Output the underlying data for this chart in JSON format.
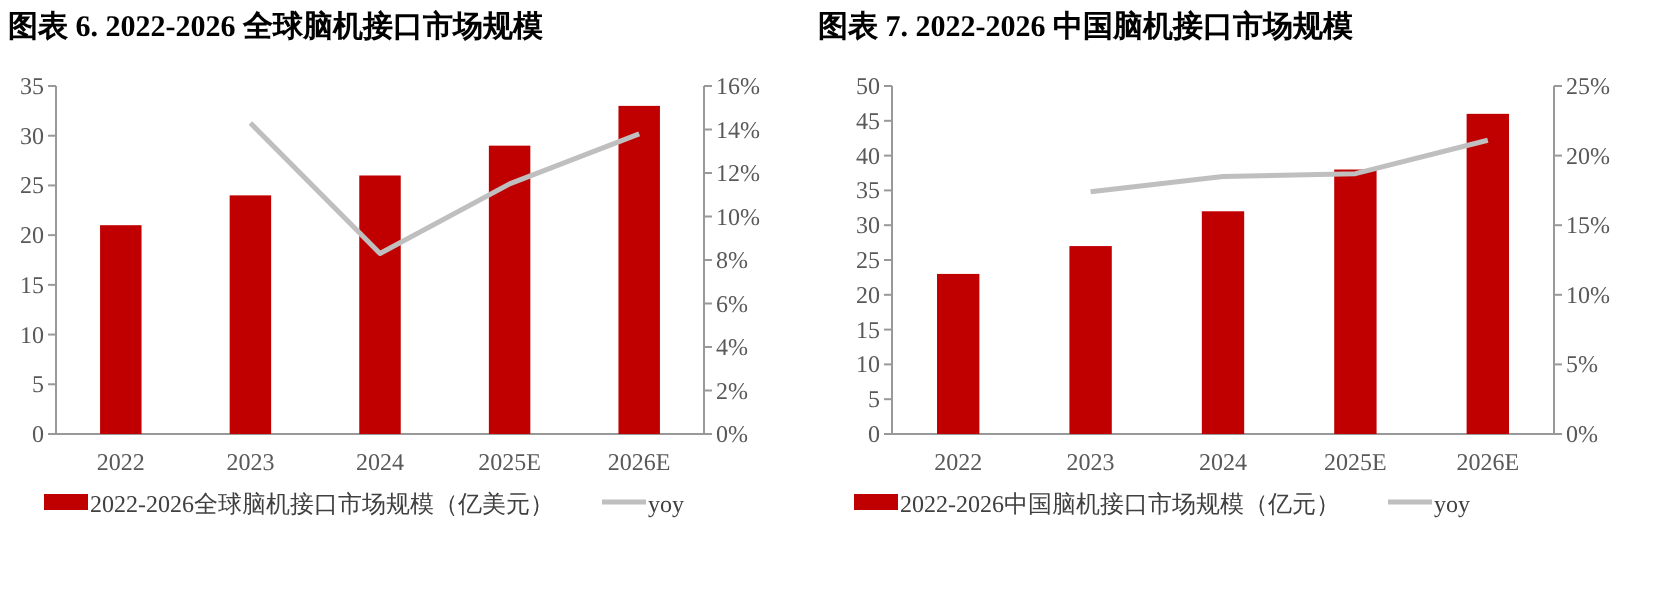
{
  "chart_data": [
    {
      "type": "bar",
      "title": "图表 6. 2022-2026 全球脑机接口市场规模",
      "categories": [
        "2022",
        "2023",
        "2024",
        "2025E",
        "2026E"
      ],
      "series": [
        {
          "name": "2022-2026全球脑机接口市场规模（亿美元）",
          "color": "#c00000",
          "values": [
            21,
            24,
            26,
            29,
            33
          ]
        },
        {
          "name": "yoy",
          "type": "line",
          "axis": "y2",
          "color": "#bfbfbf",
          "values": [
            null,
            14.3,
            8.3,
            11.5,
            13.8
          ]
        }
      ],
      "ylim": [
        0,
        35
      ],
      "yticks": [
        0,
        5,
        10,
        15,
        20,
        25,
        30,
        35
      ],
      "y2lim": [
        0,
        16
      ],
      "y2ticks": [
        {
          "value": 0,
          "label": "0%"
        },
        {
          "value": 2,
          "label": "2%"
        },
        {
          "value": 4,
          "label": "4%"
        },
        {
          "value": 6,
          "label": "6%"
        },
        {
          "value": 8,
          "label": "8%"
        },
        {
          "value": 10,
          "label": "10%"
        },
        {
          "value": 12,
          "label": "12%"
        },
        {
          "value": 14,
          "label": "14%"
        },
        {
          "value": 16,
          "label": "16%"
        }
      ],
      "legend": "bottom",
      "marker": "none"
    },
    {
      "type": "bar",
      "title": "图表 7. 2022-2026 中国脑机接口市场规模",
      "categories": [
        "2022",
        "2023",
        "2024",
        "2025E",
        "2026E"
      ],
      "series": [
        {
          "name": "2022-2026中国脑机接口市场规模（亿元）",
          "color": "#c00000",
          "values": [
            23,
            27,
            32,
            38,
            46
          ]
        },
        {
          "name": "yoy",
          "type": "line",
          "axis": "y2",
          "color": "#bfbfbf",
          "values": [
            null,
            17.4,
            18.5,
            18.7,
            21.1
          ]
        }
      ],
      "ylim": [
        0,
        50
      ],
      "yticks": [
        0,
        5,
        10,
        15,
        20,
        25,
        30,
        35,
        40,
        45,
        50
      ],
      "y2lim": [
        0,
        25
      ],
      "y2ticks": [
        {
          "value": 0,
          "label": "0%"
        },
        {
          "value": 5,
          "label": "5%"
        },
        {
          "value": 10,
          "label": "10%"
        },
        {
          "value": 15,
          "label": "15%"
        },
        {
          "value": 20,
          "label": "20%"
        },
        {
          "value": 25,
          "label": "25%"
        }
      ],
      "legend": "bottom",
      "marker": "none"
    }
  ]
}
